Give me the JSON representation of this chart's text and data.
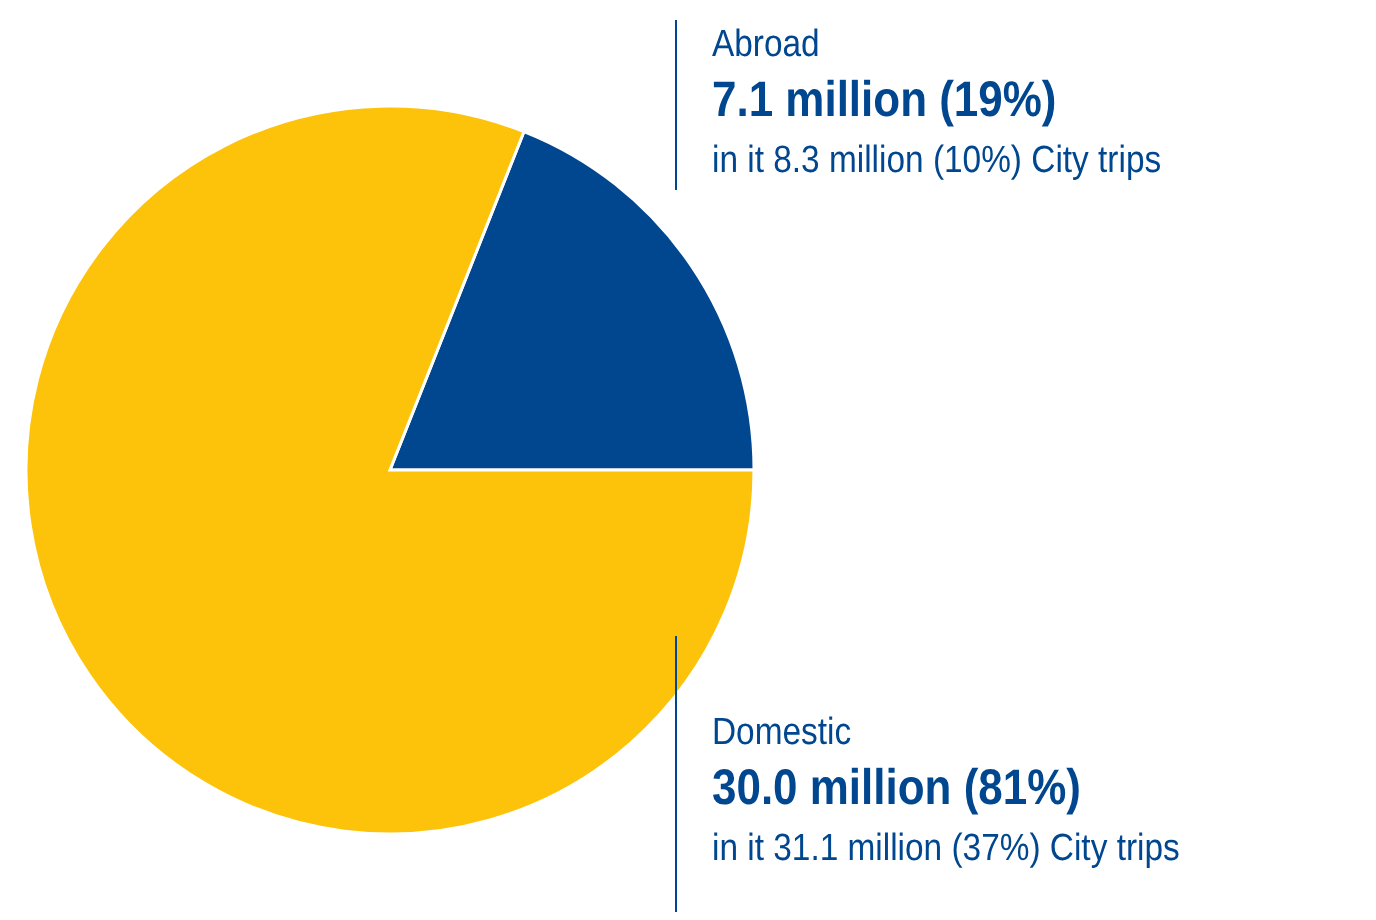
{
  "chart_data": {
    "type": "pie",
    "categories": [
      "Abroad",
      "Domestic"
    ],
    "values": [
      19,
      81
    ],
    "colors": [
      "#00478f",
      "#fdc30b"
    ],
    "value_labels": [
      "7.1 million (19%)",
      "30.0 million (81%)"
    ],
    "annotations": [
      "in it 8.3 million (10%) City trips",
      "in it 31.1 million (37%) City trips"
    ]
  }
}
